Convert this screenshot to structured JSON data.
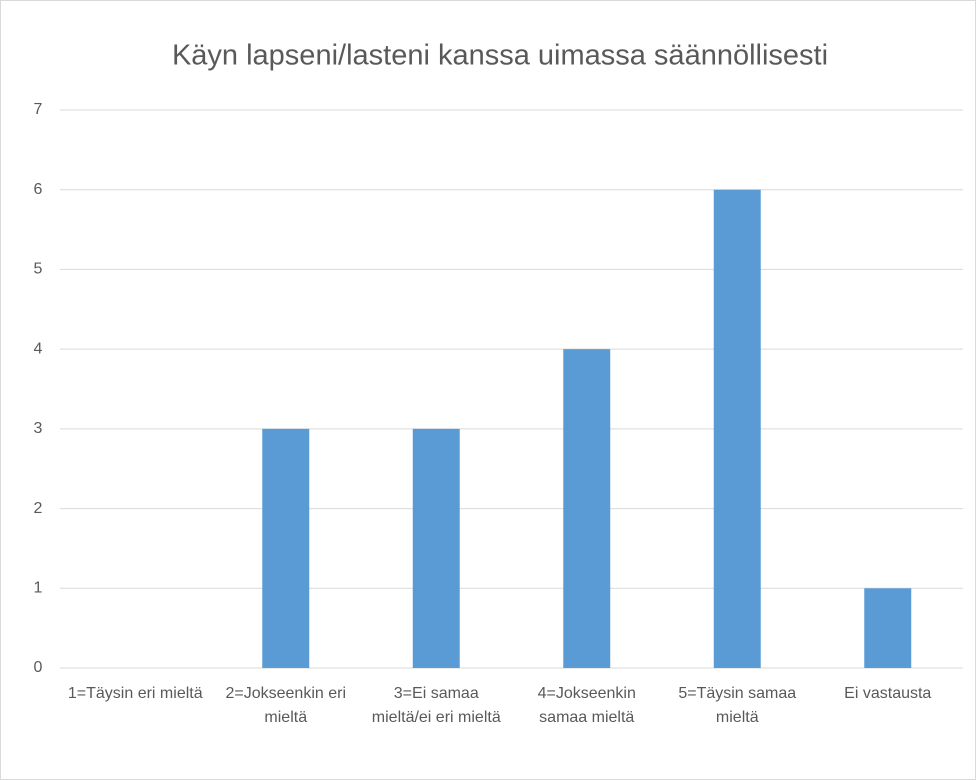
{
  "chart_data": {
    "type": "bar",
    "title": "Käyn lapseni/lasteni kanssa uimassa säännöllisesti",
    "categories": [
      "1=Täysin eri mieltä",
      "2=Jokseenkin eri mieltä",
      "3=Ei samaa mieltä/ei eri mieltä",
      "4=Jokseenkin samaa mieltä",
      "5=Täysin samaa mieltä",
      "Ei vastausta"
    ],
    "values": [
      0,
      3,
      3,
      4,
      6,
      1
    ],
    "color": "#5b9bd5",
    "ylim": [
      0,
      7
    ],
    "yticks": [
      0,
      1,
      2,
      3,
      4,
      5,
      6,
      7
    ],
    "grid": true
  }
}
